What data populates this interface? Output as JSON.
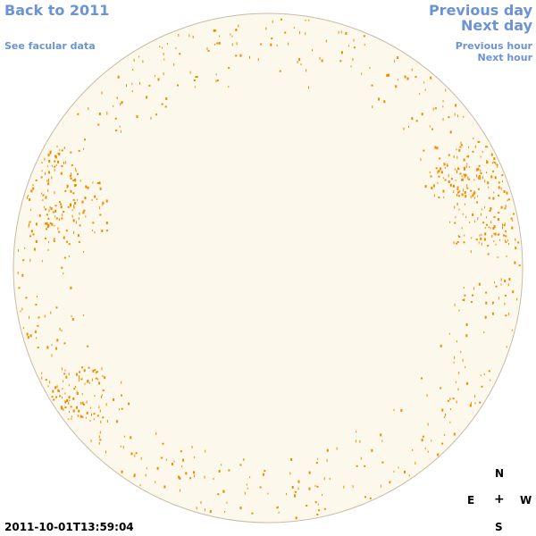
{
  "nav": {
    "back_label": "Back to 2011",
    "facular_label": "See facular data",
    "previous_day_label": "Previous day",
    "next_day_label": "Next day",
    "previous_hour_label": "Previous hour",
    "next_hour_label": "Next hour"
  },
  "compass": {
    "north": "N",
    "south": "S",
    "east": "E",
    "west": "W",
    "center": "+"
  },
  "timestamp": "2011-10-01T13:59:04",
  "colors": {
    "disk_fill": "#fdf8ec",
    "disk_stroke": "#c8bba4",
    "facula": "#f08a00",
    "link": "#6b93d6"
  }
}
